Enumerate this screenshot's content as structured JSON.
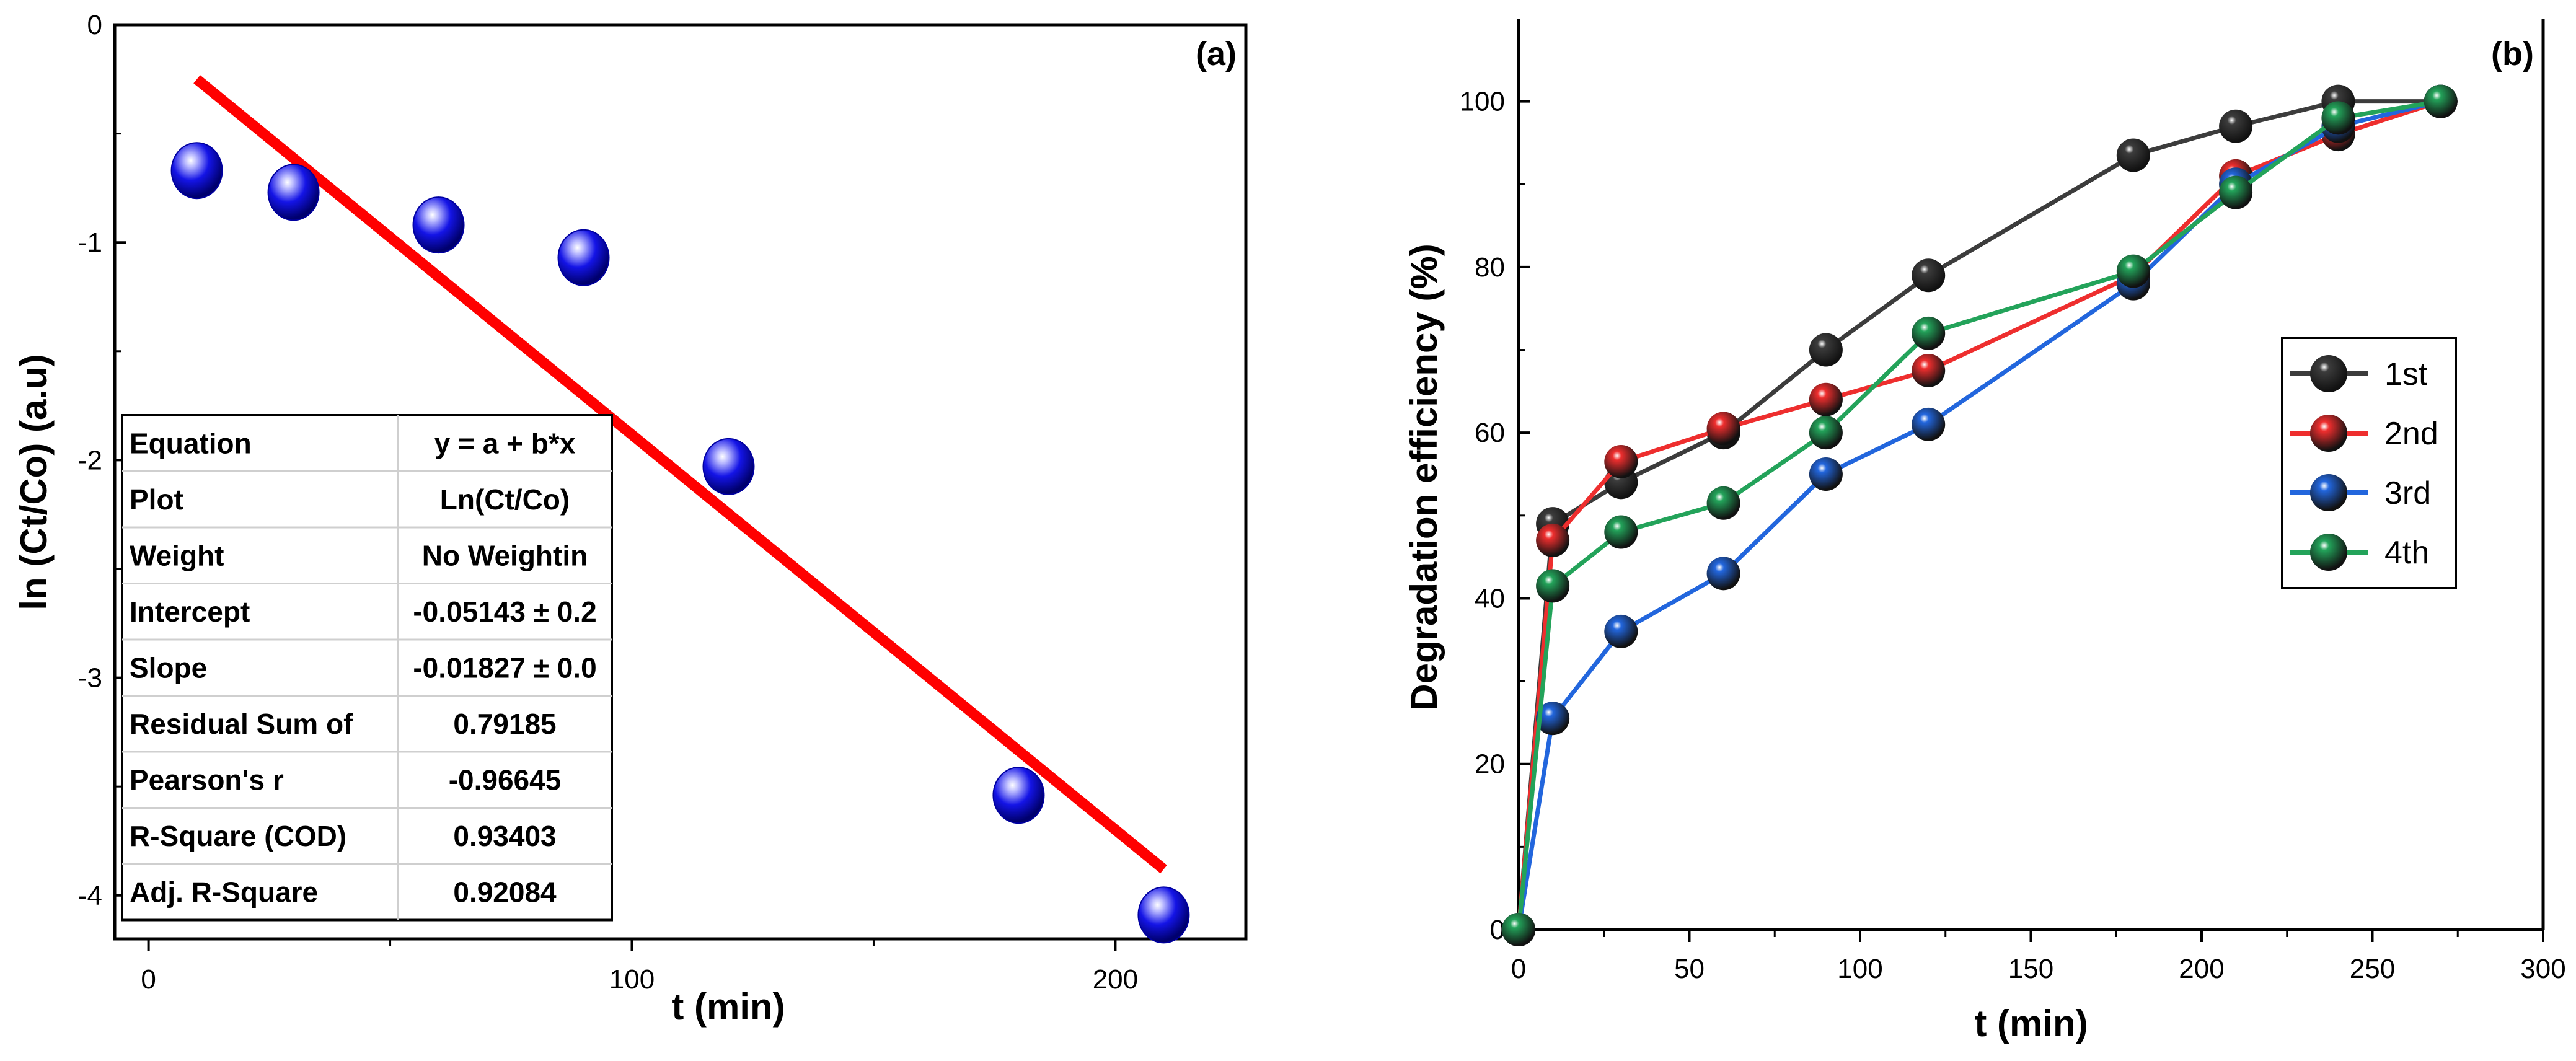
{
  "chart_data": [
    {
      "type": "scatter",
      "panel_label": "(a)",
      "xlabel": "t (min)",
      "ylabel": "ln (Ct/Co) (a.u)",
      "xlim": [
        -7,
        227
      ],
      "ylim": [
        -4.2,
        0
      ],
      "xticks": [
        0,
        100,
        200
      ],
      "yticks": [
        0,
        -1,
        -2,
        -3,
        -4
      ],
      "series": [
        {
          "x": [
            10,
            30,
            60,
            90,
            120,
            180,
            210
          ],
          "y": [
            -0.67,
            -0.77,
            -0.92,
            -1.07,
            -2.03,
            -3.54,
            -4.09
          ],
          "color": "#1414e6"
        }
      ],
      "fit_line": {
        "x": [
          10,
          210
        ],
        "y": [
          -0.25,
          -3.88
        ],
        "color": "#ff0000"
      },
      "fit_table": [
        [
          "Equation",
          "y = a + b*x"
        ],
        [
          "Plot",
          "Ln(Ct/Co)"
        ],
        [
          "Weight",
          "No Weightin"
        ],
        [
          "Intercept",
          "-0.05143 ± 0.2"
        ],
        [
          "Slope",
          "-0.01827 ± 0.0"
        ],
        [
          "Residual Sum of",
          "0.79185"
        ],
        [
          "Pearson's r",
          "-0.96645"
        ],
        [
          "R-Square (COD)",
          "0.93403"
        ],
        [
          "Adj. R-Square",
          "0.92084"
        ]
      ],
      "grid": false
    },
    {
      "type": "line",
      "panel_label": "(b)",
      "xlabel": "t (min)",
      "ylabel": "Degradation efficiency (%)",
      "xlim": [
        0,
        300
      ],
      "ylim": [
        0,
        110
      ],
      "xticks": [
        0,
        50,
        100,
        150,
        200,
        250,
        300
      ],
      "yticks": [
        0,
        20,
        40,
        60,
        80,
        100
      ],
      "x": [
        0,
        10,
        30,
        60,
        90,
        120,
        180,
        210,
        240,
        270
      ],
      "series": [
        {
          "name": "1st",
          "color": "#3c3c3c",
          "values": [
            0,
            49,
            54,
            60,
            70,
            79,
            93.5,
            97,
            100,
            100
          ]
        },
        {
          "name": "2nd",
          "color": "#ee2e2e",
          "values": [
            0,
            47,
            56.5,
            60.5,
            64,
            67.5,
            79,
            91,
            96,
            100
          ]
        },
        {
          "name": "3rd",
          "color": "#2266dd",
          "values": [
            0,
            25.5,
            36,
            43,
            55,
            61,
            78,
            90,
            97,
            100
          ]
        },
        {
          "name": "4th",
          "color": "#23a35a",
          "values": [
            0,
            41.5,
            48,
            51.5,
            60,
            72,
            79.5,
            89,
            98,
            100
          ]
        }
      ],
      "legend_position": "right",
      "grid": false
    }
  ]
}
